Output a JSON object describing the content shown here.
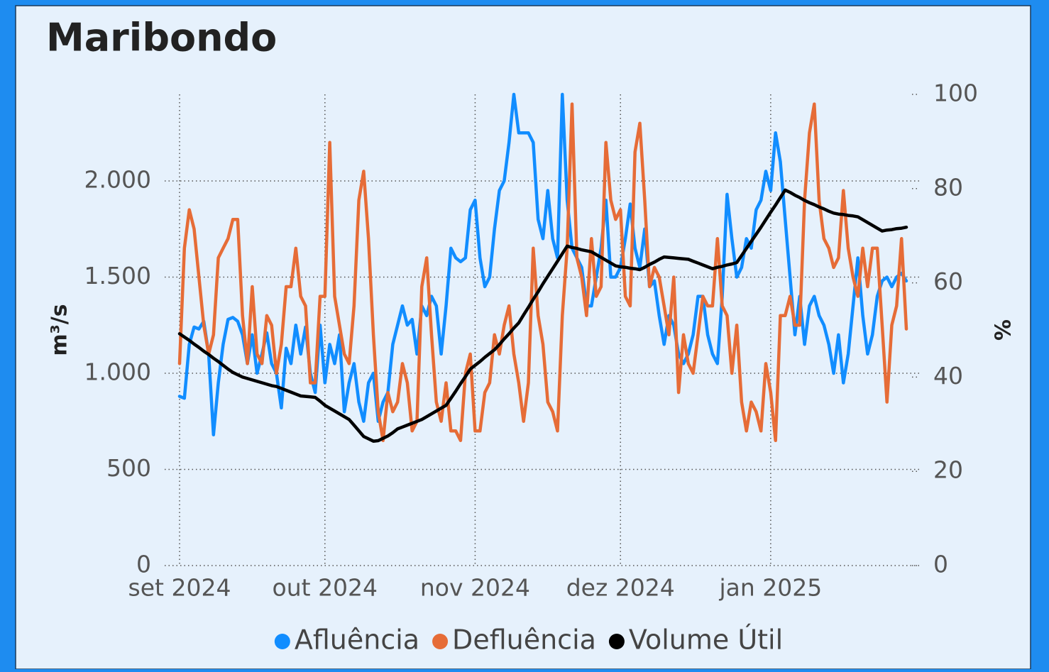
{
  "chart_data": {
    "type": "line",
    "title": "Maribondo",
    "y_label": "m³/s",
    "y2_label": "%",
    "categories": [
      "set 2024",
      null,
      null,
      null,
      null,
      null,
      null,
      null,
      null,
      null,
      null,
      null,
      null,
      null,
      null,
      null,
      null,
      null,
      null,
      null,
      null,
      null,
      null,
      null,
      null,
      null,
      null,
      null,
      null,
      null,
      "out 2024",
      null,
      null,
      null,
      null,
      null,
      null,
      null,
      null,
      null,
      null,
      null,
      null,
      null,
      null,
      null,
      null,
      null,
      null,
      null,
      null,
      null,
      null,
      null,
      null,
      null,
      null,
      null,
      null,
      null,
      null,
      "nov 2024",
      null,
      null,
      null,
      null,
      null,
      null,
      null,
      null,
      null,
      null,
      null,
      null,
      null,
      null,
      null,
      null,
      null,
      null,
      null,
      null,
      null,
      null,
      null,
      null,
      null,
      null,
      null,
      null,
      null,
      "dez 2024",
      null,
      null,
      null,
      null,
      null,
      null,
      null,
      null,
      null,
      null,
      null,
      null,
      null,
      null,
      null,
      null,
      null,
      null,
      null,
      null,
      null,
      null,
      null,
      null,
      null,
      null,
      null,
      null,
      null,
      null,
      "jan 2025",
      null,
      null,
      null,
      null,
      null,
      null,
      null,
      null,
      null,
      null,
      null,
      null,
      null,
      null,
      null,
      null,
      null,
      null,
      null,
      null,
      null,
      null,
      null,
      null,
      null,
      null,
      null,
      null
    ],
    "series": [
      {
        "name": "Afluência",
        "color": "#118dff",
        "axis": "y",
        "values": [
          880,
          870,
          1150,
          1240,
          1230,
          1270,
          1100,
          680,
          950,
          1150,
          1280,
          1290,
          1270,
          1200,
          1050,
          1200,
          1000,
          1100,
          1210,
          1050,
          1000,
          820,
          1130,
          1050,
          1250,
          1100,
          1240,
          1000,
          900,
          1250,
          950,
          1150,
          1050,
          1200,
          800,
          950,
          1050,
          850,
          750,
          950,
          1000,
          750,
          850,
          900,
          1150,
          1250,
          1350,
          1250,
          1280,
          1100,
          1350,
          1300,
          1400,
          1350,
          1100,
          1350,
          1650,
          1600,
          1580,
          1600,
          1850,
          1900,
          1600,
          1450,
          1500,
          1750,
          1950,
          2000,
          2200,
          2450,
          2250,
          2250,
          2250,
          2200,
          1800,
          1700,
          1950,
          1700,
          1600,
          2450,
          1900,
          1650,
          1600,
          1550,
          1350,
          1350,
          1500,
          1650,
          1900,
          1500,
          1500,
          1550,
          1700,
          1880,
          1650,
          1550,
          1750,
          1450,
          1480,
          1300,
          1150,
          1300,
          1250,
          1100,
          1050,
          1100,
          1200,
          1400,
          1400,
          1200,
          1100,
          1050,
          1400,
          1930,
          1700,
          1500,
          1550,
          1700,
          1650,
          1850,
          1900,
          2050,
          1950,
          2250,
          2100,
          1800,
          1500,
          1200,
          1400,
          1150,
          1350,
          1400,
          1300,
          1250,
          1150,
          1000,
          1200,
          950,
          1100,
          1350,
          1600,
          1300,
          1100,
          1200,
          1400,
          1480,
          1500,
          1450,
          1500,
          1520,
          1480
        ]
      },
      {
        "name": "Defluência",
        "color": "#e66c37",
        "axis": "y",
        "values": [
          1050,
          1650,
          1850,
          1750,
          1500,
          1250,
          1100,
          1200,
          1600,
          1650,
          1700,
          1800,
          1800,
          1300,
          1050,
          1450,
          1100,
          1050,
          1300,
          1250,
          1000,
          1150,
          1450,
          1450,
          1650,
          1400,
          1350,
          950,
          950,
          1400,
          1400,
          2200,
          1400,
          1250,
          1100,
          1050,
          1350,
          1900,
          2050,
          1700,
          1200,
          800,
          650,
          900,
          800,
          850,
          1050,
          950,
          700,
          750,
          1450,
          1600,
          1200,
          850,
          750,
          950,
          700,
          700,
          650,
          1000,
          1100,
          700,
          700,
          900,
          950,
          1200,
          1100,
          1250,
          1350,
          1100,
          950,
          750,
          950,
          1650,
          1300,
          1150,
          850,
          800,
          700,
          1300,
          1650,
          2400,
          1600,
          1500,
          1300,
          1700,
          1400,
          1450,
          2200,
          1900,
          1800,
          1850,
          1400,
          1350,
          2150,
          2300,
          1900,
          1450,
          1550,
          1500,
          1350,
          1200,
          1500,
          900,
          1200,
          1050,
          1000,
          1200,
          1400,
          1350,
          1350,
          1700,
          1350,
          1300,
          1000,
          1250,
          850,
          700,
          850,
          800,
          700,
          1050,
          900,
          650,
          1300,
          1300,
          1400,
          1250,
          1250,
          1900,
          2250,
          2400,
          1900,
          1700,
          1650,
          1550,
          1600,
          1950,
          1650,
          1500,
          1400,
          1650,
          1450,
          1650,
          1650,
          1250,
          850,
          1250,
          1350,
          1700,
          1230
        ]
      },
      {
        "name": "Volume Útil",
        "color": "#000000",
        "axis": "y2",
        "values": [
          49.2,
          48.5,
          47.8,
          47,
          46.3,
          45.5,
          44.8,
          44,
          43.3,
          42.5,
          41.7,
          41,
          40.5,
          40,
          39.7,
          39.4,
          39.1,
          38.8,
          38.5,
          38.2,
          38,
          37.6,
          37.2,
          36.8,
          36.4,
          36,
          35.9,
          35.8,
          35.7,
          34.9,
          34,
          33.4,
          32.8,
          32.2,
          31.6,
          31,
          29.8,
          28.6,
          27.4,
          26.9,
          26.4,
          26.5,
          27,
          27.5,
          28.2,
          29,
          29.4,
          29.8,
          30.2,
          30.6,
          31,
          31.6,
          32.2,
          32.8,
          33.4,
          34,
          35.5,
          37,
          38.6,
          40.1,
          41.7,
          42.5,
          43.3,
          44.2,
          45,
          45.8,
          46.9,
          48.1,
          49.2,
          50.4,
          51.5,
          53.2,
          54.8,
          56.5,
          58.1,
          59.8,
          61.4,
          63,
          64.6,
          66.2,
          67.8,
          67.5,
          67.3,
          67,
          66.8,
          66.6,
          66,
          65.4,
          64.8,
          64.2,
          63.6,
          63.4,
          63.3,
          63.1,
          63,
          62.8,
          63.3,
          63.9,
          64.4,
          65,
          65.5,
          65.4,
          65.3,
          65.2,
          65.1,
          65,
          64.6,
          64.2,
          63.8,
          63.4,
          63,
          63.3,
          63.5,
          63.8,
          64,
          64.3,
          65.8,
          67.3,
          68.8,
          70.3,
          71.8,
          73.4,
          75,
          76.5,
          78.1,
          79.7,
          79.2,
          78.6,
          78.1,
          77.5,
          77,
          76.6,
          76.1,
          75.7,
          75.2,
          74.8,
          74.6,
          74.5,
          74.3,
          74.2,
          74,
          73.4,
          72.8,
          72.2,
          71.6,
          71,
          71.2,
          71.3,
          71.5,
          71.6,
          71.8
        ]
      }
    ],
    "ylim": [
      0,
      2450
    ],
    "yticks": [
      0,
      500,
      {
        "value": 1000,
        "label": "1.000"
      },
      {
        "value": 1500,
        "label": "1.500"
      },
      {
        "value": 2000,
        "label": "2.000"
      }
    ],
    "y2lim": [
      0,
      100
    ],
    "y2ticks": [
      0,
      20,
      40,
      60,
      80,
      100
    ],
    "grid": true,
    "legend": "bottom"
  }
}
